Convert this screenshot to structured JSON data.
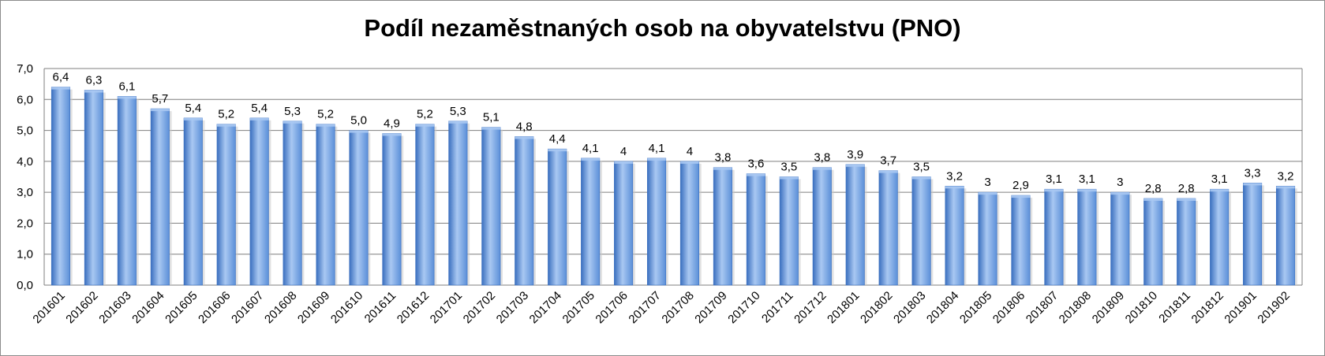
{
  "chart_data": {
    "type": "bar",
    "title": "Podíl nezaměstnaných osob na obyvatelstvu (PNO)",
    "xlabel": "",
    "ylabel": "",
    "ylim": [
      0,
      7
    ],
    "yticks": [
      "0,0",
      "1,0",
      "2,0",
      "3,0",
      "4,0",
      "5,0",
      "6,0",
      "7,0"
    ],
    "grid": true,
    "colors": {
      "bar": "#5b8fd8",
      "bar_light": "#a9c8f2",
      "bar_dark": "#3a6fbf",
      "grid": "#7f7f7f"
    },
    "categories": [
      "201601",
      "201602",
      "201603",
      "201604",
      "201605",
      "201606",
      "201607",
      "201608",
      "201609",
      "201610",
      "201611",
      "201612",
      "201701",
      "201702",
      "201703",
      "201704",
      "201705",
      "201706",
      "201707",
      "201708",
      "201709",
      "201710",
      "201711",
      "201712",
      "201801",
      "201802",
      "201803",
      "201804",
      "201805",
      "201806",
      "201807",
      "201808",
      "201809",
      "201810",
      "201811",
      "201812",
      "201901",
      "201902"
    ],
    "values": [
      6.4,
      6.3,
      6.1,
      5.7,
      5.4,
      5.2,
      5.4,
      5.3,
      5.2,
      5.0,
      4.9,
      5.2,
      5.3,
      5.1,
      4.8,
      4.4,
      4.1,
      4,
      4.1,
      4,
      3.8,
      3.6,
      3.5,
      3.8,
      3.9,
      3.7,
      3.5,
      3.2,
      3,
      2.9,
      3.1,
      3.1,
      3,
      2.8,
      2.8,
      3.1,
      3.3,
      3.2
    ],
    "data_labels": [
      "6,4",
      "6,3",
      "6,1",
      "5,7",
      "5,4",
      "5,2",
      "5,4",
      "5,3",
      "5,2",
      "5,0",
      "4,9",
      "5,2",
      "5,3",
      "5,1",
      "4,8",
      "4,4",
      "4,1",
      "4",
      "4,1",
      "4",
      "3,8",
      "3,6",
      "3,5",
      "3,8",
      "3,9",
      "3,7",
      "3,5",
      "3,2",
      "3",
      "2,9",
      "3,1",
      "3,1",
      "3",
      "2,8",
      "2,8",
      "3,1",
      "3,3",
      "3,2"
    ]
  }
}
